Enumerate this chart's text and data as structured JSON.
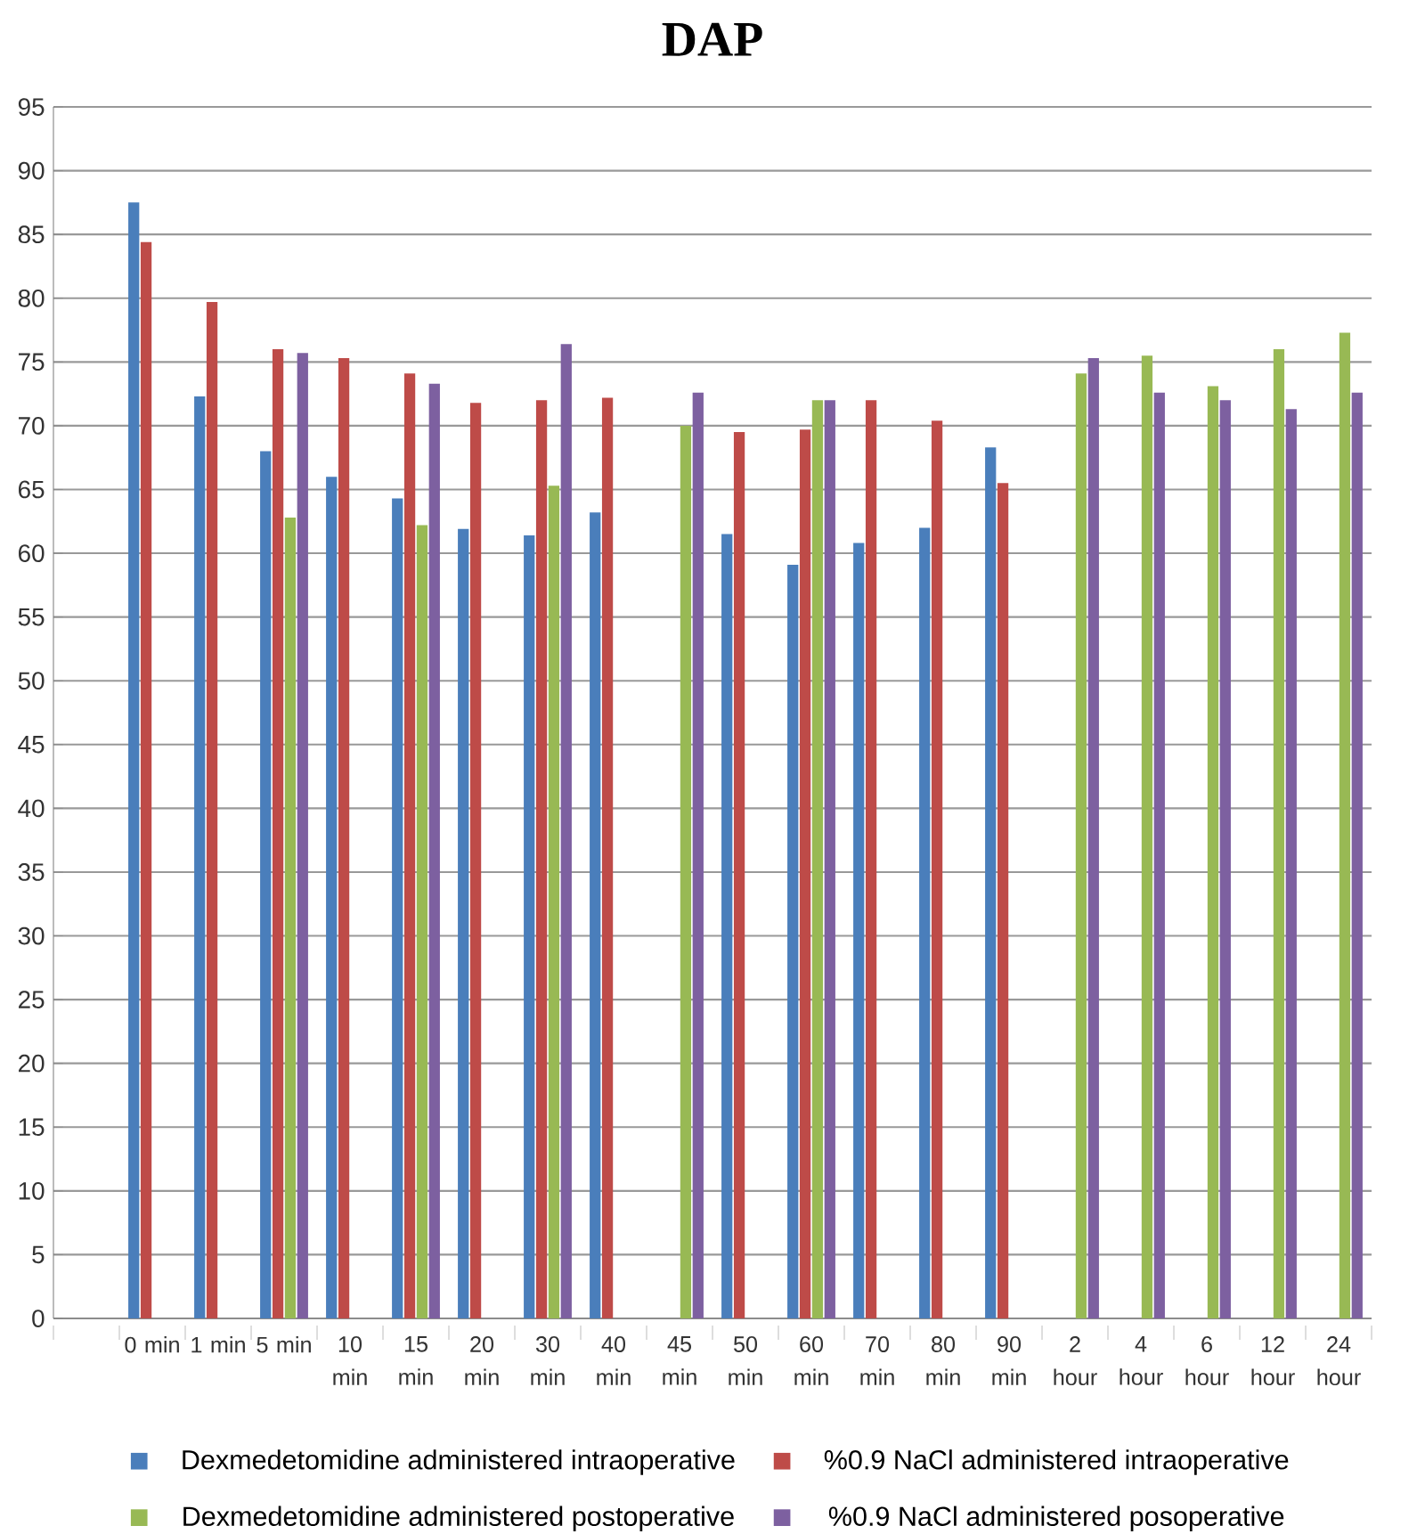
{
  "chart_data": {
    "type": "bar",
    "title": "DAP",
    "categories": [
      null,
      "0 min",
      "1 min",
      "5 min",
      "10 min",
      "15 min",
      "20 min",
      "30 min",
      "40 min",
      "45 min",
      "50 min",
      "60 min",
      "70 min",
      "80 min",
      "90 min",
      "2 hour",
      "4 hour",
      "6 hour",
      "12 hour",
      "24 hour"
    ],
    "series": [
      {
        "name": "Dexmedetomidine administered intraoperative",
        "color": "#4a7ebb",
        "values": [
          null,
          87.5,
          72.3,
          68.0,
          66.0,
          64.3,
          61.9,
          61.4,
          63.2,
          null,
          61.5,
          59.1,
          60.8,
          62.0,
          68.3,
          null,
          null,
          null,
          null,
          null
        ]
      },
      {
        "name": "%0.9 NaCl administered intraoperative",
        "color": "#be4b48",
        "values": [
          null,
          84.4,
          79.7,
          76.0,
          75.3,
          74.1,
          71.8,
          72.0,
          72.2,
          null,
          69.5,
          69.7,
          72.0,
          70.4,
          65.5,
          null,
          null,
          null,
          null,
          null
        ]
      },
      {
        "name": "Dexmedetomidine administered postoperative",
        "color": "#98b954",
        "values": [
          null,
          null,
          null,
          62.8,
          null,
          62.2,
          null,
          65.3,
          null,
          70.0,
          null,
          72.0,
          null,
          null,
          null,
          74.1,
          75.5,
          73.1,
          76.0,
          77.3
        ]
      },
      {
        "name": "%0.9 NaCl administered posoperative",
        "color": "#7d60a0",
        "values": [
          null,
          null,
          null,
          75.7,
          null,
          73.3,
          null,
          76.4,
          null,
          72.6,
          null,
          72.0,
          null,
          null,
          null,
          75.3,
          72.6,
          72.0,
          71.3,
          72.6
        ]
      }
    ],
    "ylim": [
      0,
      95
    ],
    "yticks": [
      0,
      5,
      10,
      15,
      20,
      25,
      30,
      35,
      40,
      45,
      50,
      55,
      60,
      65,
      70,
      75,
      80,
      85,
      90,
      95
    ],
    "grid": "y",
    "legend": "bottom"
  }
}
